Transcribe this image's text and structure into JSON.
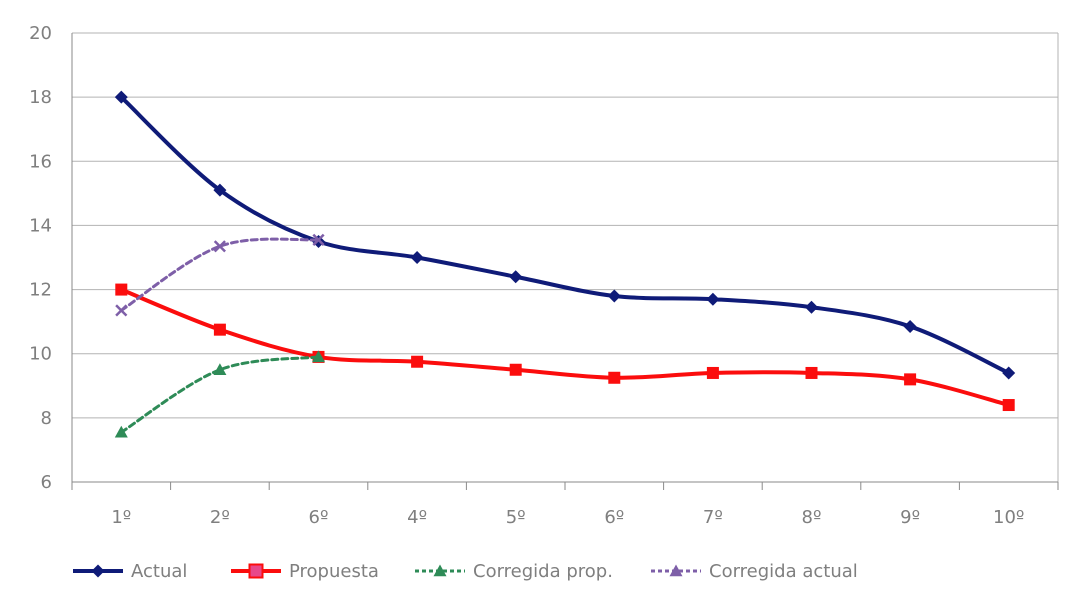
{
  "chart_data": {
    "type": "line",
    "categories": [
      "1º",
      "2º",
      "6º",
      "4º",
      "5º",
      "6º",
      "7º",
      "8º",
      "9º",
      "10º"
    ],
    "ylim": [
      6,
      20
    ],
    "yticks": [
      6,
      8,
      10,
      12,
      14,
      16,
      18,
      20
    ],
    "grid": true,
    "legend_position": "bottom",
    "series": [
      {
        "name": "Actual",
        "color": "#0f1b78",
        "marker": "diamond",
        "dashed": false,
        "values": [
          18.0,
          15.1,
          13.5,
          13.0,
          12.4,
          11.8,
          11.7,
          11.45,
          10.85,
          9.4
        ]
      },
      {
        "name": "Propuesta",
        "color": "#fb0d0d",
        "marker": "square",
        "dashed": false,
        "values": [
          12.0,
          10.75,
          9.9,
          9.75,
          9.5,
          9.25,
          9.4,
          9.4,
          9.2,
          8.4
        ]
      },
      {
        "name": "Corregida prop.",
        "color": "#2e8b57",
        "marker": "triangle",
        "dashed": true,
        "values": [
          7.55,
          9.5,
          9.9,
          null,
          null,
          null,
          null,
          null,
          null,
          null
        ]
      },
      {
        "name": "Corregida actual",
        "color": "#7e5fa8",
        "marker": "x",
        "legend_marker": "triangle",
        "dashed": true,
        "values": [
          11.35,
          13.35,
          13.55,
          null,
          null,
          null,
          null,
          null,
          null,
          null
        ]
      }
    ]
  }
}
